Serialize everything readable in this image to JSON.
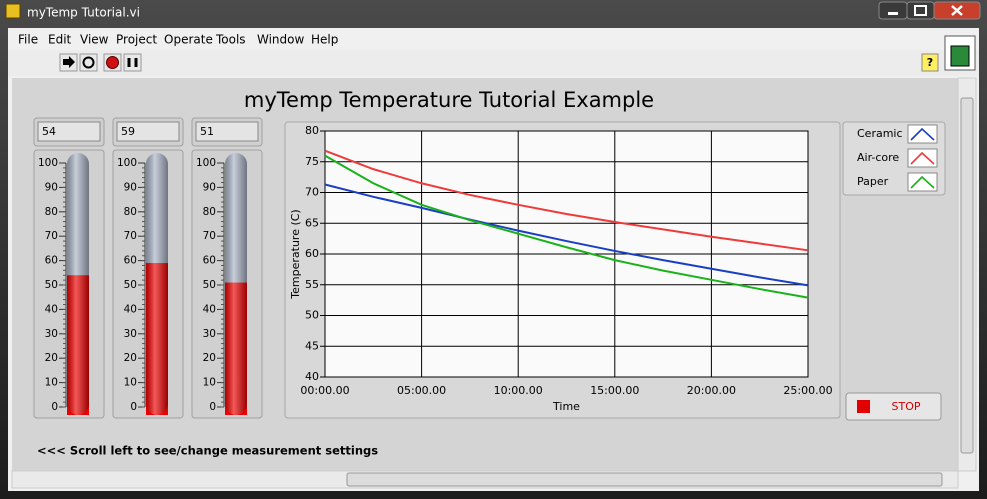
{
  "window": {
    "title": "myTemp Tutorial.vi"
  },
  "menu": [
    "File",
    "Edit",
    "View",
    "Project",
    "Operate",
    "Tools",
    "Window",
    "Help"
  ],
  "panel": {
    "heading": "myTemp Temperature Tutorial Example",
    "note": "<<< Scroll left to see/change measurement settings",
    "stop_button": "STOP"
  },
  "thermometers": {
    "ylim": [
      0,
      100
    ],
    "yticks": [
      0,
      10,
      20,
      30,
      40,
      50,
      60,
      70,
      80,
      90,
      100
    ],
    "fill_color": "#ee0000",
    "empty_color": "#aab3c6",
    "gauges": [
      {
        "value": 54
      },
      {
        "value": 59
      },
      {
        "value": 51
      }
    ]
  },
  "chart_data": {
    "type": "line",
    "xlabel": "Time",
    "ylabel": "Temperature (C)",
    "x": [
      0,
      2.5,
      5,
      7.5,
      10,
      12.5,
      15,
      17.5,
      20,
      22.5,
      25
    ],
    "xlim": [
      0,
      25
    ],
    "xticks": [
      {
        "value": 0,
        "label": "00:00.00"
      },
      {
        "value": 5,
        "label": "05:00.00"
      },
      {
        "value": 10,
        "label": "10:00.00"
      },
      {
        "value": 15,
        "label": "15:00.00"
      },
      {
        "value": 20,
        "label": "20:00.00"
      },
      {
        "value": 25,
        "label": "25:00.00"
      }
    ],
    "ylim": [
      40,
      80
    ],
    "yticks": [
      40,
      45,
      50,
      55,
      60,
      65,
      70,
      75,
      80
    ],
    "grid": true,
    "legend": "outside-right-top",
    "series": [
      {
        "name": "Ceramic",
        "color": "#1a3fc4",
        "values": [
          71.3,
          69.3,
          67.5,
          65.6,
          63.8,
          62.1,
          60.5,
          59.0,
          57.6,
          56.2,
          54.9
        ]
      },
      {
        "name": "Air-core",
        "color": "#f03a3a",
        "values": [
          76.8,
          73.8,
          71.5,
          69.6,
          68.0,
          66.5,
          65.2,
          64.0,
          62.8,
          61.7,
          60.6
        ]
      },
      {
        "name": "Paper",
        "color": "#19b219",
        "values": [
          76.0,
          71.5,
          68.0,
          65.5,
          63.3,
          61.1,
          59.0,
          57.3,
          55.8,
          54.3,
          52.9
        ]
      }
    ]
  }
}
